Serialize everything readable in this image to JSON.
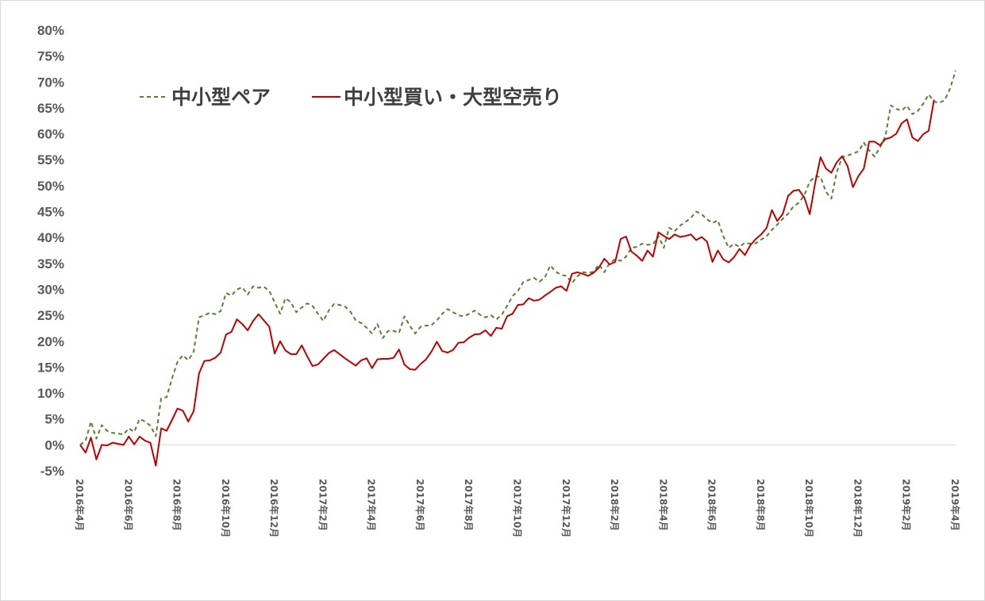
{
  "chart_data": {
    "type": "line",
    "title": "",
    "xlabel": "",
    "ylabel": "",
    "ylim": [
      -5,
      80
    ],
    "y_tick_labels": [
      "80%",
      "75%",
      "70%",
      "65%",
      "60%",
      "55%",
      "50%",
      "45%",
      "40%",
      "35%",
      "30%",
      "25%",
      "20%",
      "15%",
      "10%",
      "5%",
      "0%",
      "-5%"
    ],
    "x_tick_labels": [
      "2016年4月",
      "2016年6月",
      "2016年8月",
      "2016年10月",
      "2016年12月",
      "2017年2月",
      "2017年4月",
      "2017年6月",
      "2017年8月",
      "2017年10月",
      "2017年12月",
      "2018年2月",
      "2018年4月",
      "2018年6月",
      "2018年8月",
      "2018年10月",
      "2018年12月",
      "2019年2月",
      "2019年4月"
    ],
    "grid": "zero-line only",
    "legend_position": "top-left",
    "series": [
      {
        "name": "中小型ペア",
        "color": "#548235",
        "style": "dashed",
        "values": [
          0.0,
          0.8,
          4.5,
          1.2,
          3.8,
          2.7,
          2.3,
          2.2,
          2.0,
          3.2,
          2.5,
          5.0,
          4.5,
          3.7,
          1.7,
          9.0,
          9.2,
          12.8,
          16.0,
          17.3,
          16.3,
          18.0,
          24.6,
          25.0,
          25.5,
          25.2,
          25.8,
          29.3,
          28.8,
          30.0,
          30.4,
          29.0,
          30.6,
          30.3,
          30.5,
          29.7,
          27.5,
          25.3,
          28.3,
          27.5,
          25.6,
          26.5,
          27.3,
          26.8,
          25.3,
          23.9,
          25.9,
          27.2,
          27.0,
          26.7,
          25.7,
          24.0,
          23.5,
          22.6,
          21.5,
          23.3,
          20.6,
          22.0,
          22.0,
          21.6,
          24.8,
          23.0,
          21.5,
          22.8,
          23.0,
          23.1,
          24.0,
          25.3,
          26.2,
          25.6,
          25.0,
          24.8,
          25.3,
          25.9,
          25.1,
          24.6,
          25.0,
          24.2,
          25.1,
          26.8,
          28.7,
          29.7,
          31.4,
          31.8,
          32.2,
          31.5,
          32.3,
          34.6,
          33.4,
          32.8,
          32.6,
          31.2,
          32.5,
          33.3,
          33.2,
          33.4,
          34.8,
          33.3,
          35.1,
          35.8,
          35.5,
          36.3,
          38.0,
          38.2,
          38.8,
          38.6,
          38.7,
          40.3,
          38.0,
          41.9,
          41.2,
          42.3,
          43.0,
          43.8,
          45.0,
          44.5,
          43.5,
          42.8,
          43.3,
          40.3,
          38.0,
          38.8,
          38.2,
          39.0,
          38.8,
          38.9,
          39.6,
          40.2,
          41.5,
          42.5,
          43.6,
          44.6,
          46.0,
          46.7,
          48.2,
          50.8,
          51.8,
          51.7,
          48.8,
          47.5,
          52.6,
          55.5,
          55.8,
          56.2,
          56.6,
          58.3,
          56.8,
          55.6,
          57.4,
          59.5,
          65.5,
          64.8,
          64.5,
          65.4,
          63.8,
          64.4,
          65.8,
          67.6,
          66.2,
          66.0,
          66.5,
          68.8,
          72.2
        ]
      },
      {
        "name": "中小型買い・大型空売り",
        "color": "#c00000",
        "style": "solid",
        "values": [
          0.0,
          -1.5,
          1.4,
          -2.8,
          0.0,
          -0.1,
          0.4,
          0.2,
          0.0,
          1.6,
          0.1,
          1.6,
          0.8,
          0.4,
          -4.0,
          3.2,
          2.7,
          4.8,
          7.0,
          6.6,
          4.5,
          6.5,
          13.8,
          16.2,
          16.3,
          16.8,
          17.8,
          21.3,
          21.8,
          24.2,
          23.3,
          22.1,
          23.9,
          25.2,
          24.0,
          22.8,
          17.6,
          20.0,
          18.2,
          17.5,
          17.5,
          19.2,
          17.1,
          15.2,
          15.5,
          16.6,
          17.7,
          18.3,
          17.5,
          16.7,
          16.0,
          15.3,
          16.3,
          16.7,
          14.8,
          16.5,
          16.6,
          16.6,
          16.8,
          18.4,
          15.5,
          14.6,
          14.5,
          15.6,
          16.5,
          18.0,
          19.9,
          18.1,
          17.8,
          18.3,
          19.7,
          19.8,
          20.7,
          21.3,
          21.4,
          22.1,
          21.0,
          22.6,
          22.4,
          24.8,
          25.3,
          27.0,
          27.1,
          28.3,
          27.8,
          28.0,
          28.8,
          29.5,
          30.3,
          30.6,
          29.7,
          33.0,
          33.3,
          33.0,
          32.6,
          33.2,
          34.2,
          35.9,
          34.8,
          35.3,
          39.7,
          40.2,
          37.3,
          36.5,
          35.5,
          37.5,
          36.3,
          41.0,
          40.3,
          39.7,
          40.6,
          40.1,
          40.3,
          40.6,
          39.5,
          40.1,
          39.2,
          35.3,
          37.5,
          35.8,
          35.2,
          36.2,
          37.8,
          36.6,
          38.5,
          39.7,
          40.6,
          41.8,
          45.3,
          43.2,
          44.5,
          48.0,
          49.0,
          49.2,
          47.7,
          44.5,
          50.5,
          55.5,
          53.3,
          52.5,
          54.5,
          55.7,
          53.8,
          49.7,
          51.8,
          53.3,
          58.5,
          58.5,
          57.8,
          59.0,
          59.3,
          60.0,
          62.0,
          62.8,
          59.3,
          58.6,
          59.9,
          60.6,
          66.6
        ]
      }
    ]
  }
}
